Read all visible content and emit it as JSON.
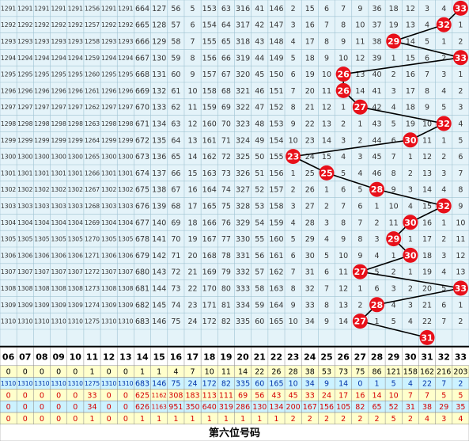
{
  "columns": [
    "06",
    "07",
    "08",
    "09",
    "10",
    "11",
    "12",
    "13",
    "14",
    "15",
    "16",
    "17",
    "18",
    "19",
    "20",
    "21",
    "22",
    "23",
    "24",
    "25",
    "26",
    "27",
    "28",
    "29",
    "30",
    "31",
    "32",
    "33"
  ],
  "rows": [
    {
      "cells": [
        1291,
        1291,
        1291,
        1291,
        1291,
        1256,
        1291,
        1291,
        664,
        127,
        56,
        5,
        153,
        63,
        316,
        41,
        146,
        2,
        15,
        6,
        7,
        9,
        36,
        18,
        12,
        3,
        4,
        null
      ],
      "ball": 33
    },
    {
      "cells": [
        1292,
        1292,
        1292,
        1292,
        1292,
        1257,
        1292,
        1292,
        665,
        128,
        57,
        6,
        154,
        64,
        317,
        42,
        147,
        3,
        16,
        7,
        8,
        10,
        37,
        19,
        13,
        4,
        null,
        1
      ],
      "ball": 32
    },
    {
      "cells": [
        1293,
        1293,
        1293,
        1293,
        1293,
        1258,
        1293,
        1293,
        666,
        129,
        58,
        7,
        155,
        65,
        318,
        43,
        148,
        4,
        17,
        8,
        9,
        11,
        38,
        null,
        14,
        5,
        1,
        2
      ],
      "ball": 29
    },
    {
      "cells": [
        1294,
        1294,
        1294,
        1294,
        1294,
        1259,
        1294,
        1294,
        667,
        130,
        59,
        8,
        156,
        66,
        319,
        44,
        149,
        5,
        18,
        9,
        10,
        12,
        39,
        1,
        15,
        6,
        2,
        null
      ],
      "ball": 33
    },
    {
      "cells": [
        1295,
        1295,
        1295,
        1295,
        1295,
        1260,
        1295,
        1295,
        668,
        131,
        60,
        9,
        157,
        67,
        320,
        45,
        150,
        6,
        19,
        10,
        null,
        13,
        40,
        2,
        16,
        7,
        3,
        1
      ],
      "ball": 26
    },
    {
      "cells": [
        1296,
        1296,
        1296,
        1296,
        1296,
        1261,
        1296,
        1296,
        669,
        132,
        61,
        10,
        158,
        68,
        321,
        46,
        151,
        7,
        20,
        11,
        null,
        14,
        41,
        3,
        17,
        8,
        4,
        2
      ],
      "ball": 26
    },
    {
      "cells": [
        1297,
        1297,
        1297,
        1297,
        1297,
        1262,
        1297,
        1297,
        670,
        133,
        62,
        11,
        159,
        69,
        322,
        47,
        152,
        8,
        21,
        12,
        1,
        null,
        42,
        4,
        18,
        9,
        5,
        3
      ],
      "ball": 27
    },
    {
      "cells": [
        1298,
        1298,
        1298,
        1298,
        1298,
        1263,
        1298,
        1298,
        671,
        134,
        63,
        12,
        160,
        70,
        323,
        48,
        153,
        9,
        22,
        13,
        2,
        1,
        43,
        5,
        19,
        10,
        null,
        4
      ],
      "ball": 32
    },
    {
      "cells": [
        1299,
        1299,
        1299,
        1299,
        1299,
        1264,
        1299,
        1299,
        672,
        135,
        64,
        13,
        161,
        71,
        324,
        49,
        154,
        10,
        23,
        14,
        3,
        2,
        44,
        6,
        null,
        11,
        1,
        5
      ],
      "ball": 30
    },
    {
      "cells": [
        1300,
        1300,
        1300,
        1300,
        1300,
        1265,
        1300,
        1300,
        673,
        136,
        65,
        14,
        162,
        72,
        325,
        50,
        155,
        null,
        24,
        15,
        4,
        3,
        45,
        7,
        1,
        12,
        2,
        6
      ],
      "ball": 23
    },
    {
      "cells": [
        1301,
        1301,
        1301,
        1301,
        1301,
        1266,
        1301,
        1301,
        674,
        137,
        66,
        15,
        163,
        73,
        326,
        51,
        156,
        1,
        25,
        null,
        5,
        4,
        46,
        8,
        2,
        13,
        3,
        7
      ],
      "ball": 25
    },
    {
      "cells": [
        1302,
        1302,
        1302,
        1302,
        1302,
        1267,
        1302,
        1302,
        675,
        138,
        67,
        16,
        164,
        74,
        327,
        52,
        157,
        2,
        26,
        1,
        6,
        5,
        null,
        9,
        3,
        14,
        4,
        8
      ],
      "ball": 28
    },
    {
      "cells": [
        1303,
        1303,
        1303,
        1303,
        1303,
        1268,
        1303,
        1303,
        676,
        139,
        68,
        17,
        165,
        75,
        328,
        53,
        158,
        3,
        27,
        2,
        7,
        6,
        1,
        10,
        4,
        15,
        null,
        9
      ],
      "ball": 32
    },
    {
      "cells": [
        1304,
        1304,
        1304,
        1304,
        1304,
        1269,
        1304,
        1304,
        677,
        140,
        69,
        18,
        166,
        76,
        329,
        54,
        159,
        4,
        28,
        3,
        8,
        7,
        2,
        11,
        null,
        16,
        1,
        10
      ],
      "ball": 30
    },
    {
      "cells": [
        1305,
        1305,
        1305,
        1305,
        1305,
        1270,
        1305,
        1305,
        678,
        141,
        70,
        19,
        167,
        77,
        330,
        55,
        160,
        5,
        29,
        4,
        9,
        8,
        3,
        null,
        1,
        17,
        2,
        11
      ],
      "ball": 29
    },
    {
      "cells": [
        1306,
        1306,
        1306,
        1306,
        1306,
        1271,
        1306,
        1306,
        679,
        142,
        71,
        20,
        168,
        78,
        331,
        56,
        161,
        6,
        30,
        5,
        10,
        9,
        4,
        1,
        null,
        18,
        3,
        12
      ],
      "ball": 30
    },
    {
      "cells": [
        1307,
        1307,
        1307,
        1307,
        1307,
        1272,
        1307,
        1307,
        680,
        143,
        72,
        21,
        169,
        79,
        332,
        57,
        162,
        7,
        31,
        6,
        11,
        null,
        5,
        2,
        1,
        19,
        4,
        13
      ],
      "ball": 27
    },
    {
      "cells": [
        1308,
        1308,
        1308,
        1308,
        1308,
        1273,
        1308,
        1308,
        681,
        144,
        73,
        22,
        170,
        80,
        333,
        58,
        163,
        8,
        32,
        7,
        12,
        1,
        6,
        3,
        2,
        20,
        5,
        null
      ],
      "ball": 33
    },
    {
      "cells": [
        1309,
        1309,
        1309,
        1309,
        1309,
        1274,
        1309,
        1309,
        682,
        145,
        74,
        23,
        171,
        81,
        334,
        59,
        164,
        9,
        33,
        8,
        13,
        2,
        null,
        4,
        3,
        21,
        6,
        1
      ],
      "ball": 28
    },
    {
      "cells": [
        1310,
        1310,
        1310,
        1310,
        1310,
        1275,
        1310,
        1310,
        683,
        146,
        75,
        24,
        172,
        82,
        335,
        60,
        165,
        10,
        34,
        9,
        14,
        null,
        1,
        5,
        4,
        22,
        7,
        2
      ],
      "ball": 27
    },
    {
      "cells": [
        null,
        null,
        null,
        null,
        null,
        null,
        null,
        null,
        null,
        null,
        null,
        null,
        null,
        null,
        null,
        null,
        null,
        null,
        null,
        null,
        null,
        null,
        null,
        null,
        null,
        null,
        null,
        null
      ],
      "ball": 31
    }
  ],
  "stats": [
    [
      0,
      0,
      0,
      0,
      0,
      1,
      0,
      0,
      1,
      1,
      4,
      7,
      10,
      11,
      14,
      22,
      26,
      28,
      38,
      53,
      73,
      75,
      86,
      121,
      158,
      162,
      216,
      203
    ],
    [
      1310,
      1310,
      1310,
      1310,
      1310,
      1275,
      1310,
      1310,
      683,
      146,
      75,
      24,
      172,
      82,
      335,
      60,
      165,
      10,
      34,
      9,
      14,
      0,
      1,
      5,
      4,
      22,
      7,
      2
    ],
    [
      0,
      0,
      0,
      0,
      0,
      33,
      0,
      0,
      625,
      1162,
      308,
      183,
      113,
      111,
      69,
      56,
      43,
      45,
      33,
      24,
      17,
      16,
      14,
      10,
      7,
      7,
      5,
      5
    ],
    [
      0,
      0,
      0,
      0,
      0,
      34,
      0,
      0,
      626,
      1163,
      951,
      350,
      640,
      319,
      286,
      130,
      134,
      200,
      167,
      156,
      105,
      82,
      65,
      52,
      31,
      38,
      29,
      35
    ],
    [
      0,
      0,
      0,
      0,
      0,
      1,
      0,
      0,
      1,
      1,
      1,
      1,
      1,
      1,
      1,
      1,
      1,
      2,
      2,
      2,
      2,
      2,
      2,
      5,
      2,
      4,
      3,
      4
    ]
  ],
  "footer": "第六位号码"
}
